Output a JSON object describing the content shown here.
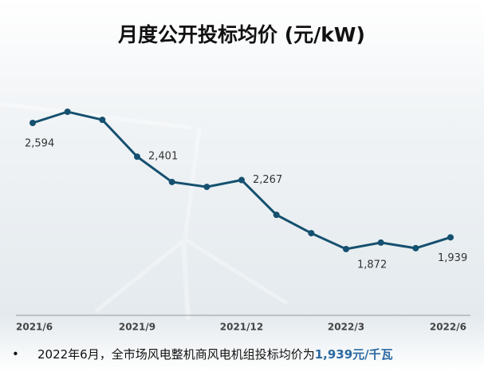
{
  "chart_data": {
    "type": "line",
    "title": "月度公开投标均价 (元/kW)",
    "categories": [
      "2021/6",
      null,
      null,
      "2021/9",
      null,
      null,
      "2021/12",
      null,
      null,
      "2022/3",
      null,
      null,
      "2022/6"
    ],
    "series": [
      {
        "name": "月度公开投标均价",
        "color": "#15506f",
        "values": [
          2594,
          2658,
          2612,
          2401,
          2256,
          2228,
          2267,
          2068,
          1963,
          1872,
          1909,
          1877,
          1939
        ],
        "value_labels": [
          "2,594",
          null,
          null,
          "2,401",
          null,
          null,
          "2,267",
          null,
          null,
          "1,872",
          null,
          null,
          "1,939"
        ]
      }
    ],
    "annotation": {
      "text": "2022年6月，全市场风电整机商风电机组投标均价为",
      "highlight": "1,939元/千瓦"
    }
  }
}
